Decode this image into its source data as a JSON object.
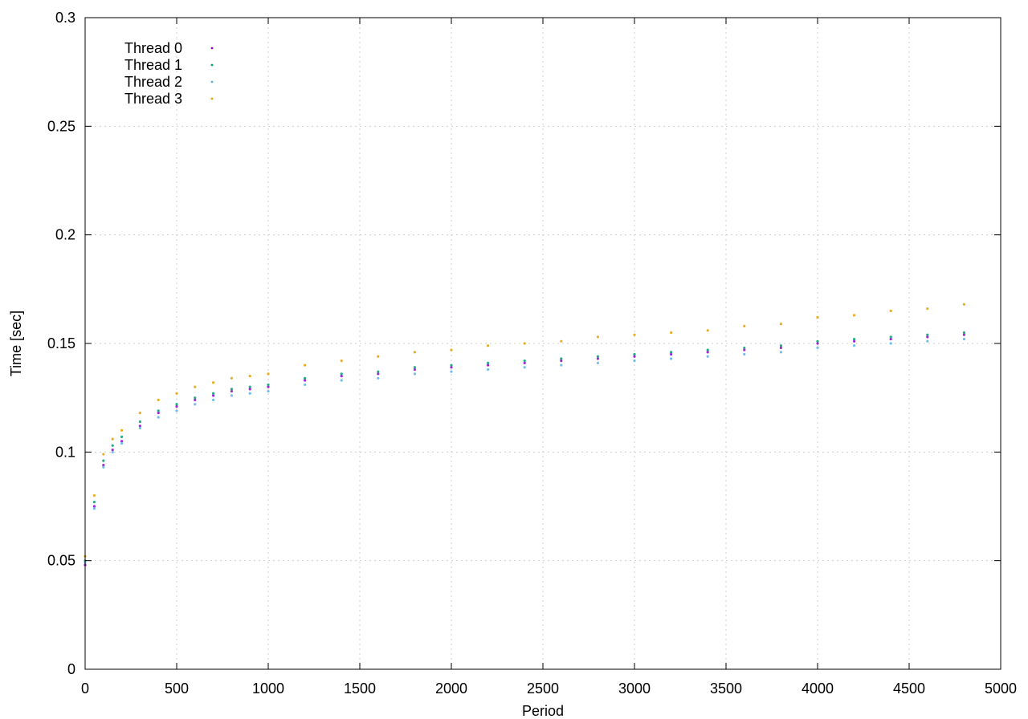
{
  "chart_data": {
    "type": "scatter",
    "title": "",
    "xlabel": "Period",
    "ylabel": "Time [sec]",
    "xlim": [
      0,
      5000
    ],
    "ylim": [
      0,
      0.3
    ],
    "x_ticks": [
      0,
      500,
      1000,
      1500,
      2000,
      2500,
      3000,
      3500,
      4000,
      4500,
      5000
    ],
    "y_ticks": [
      0,
      0.05,
      0.1,
      0.15,
      0.2,
      0.25,
      0.3
    ],
    "x_tick_labels": [
      "0",
      "500",
      "1000",
      "1500",
      "2000",
      "2500",
      "3000",
      "3500",
      "4000",
      "4500",
      "5000"
    ],
    "y_tick_labels": [
      "0",
      "0.05",
      "0.1",
      "0.15",
      "0.2",
      "0.25",
      "0.3"
    ],
    "grid": true,
    "legend_position": "top-left",
    "series": [
      {
        "name": "Thread 0",
        "color": "#9400d3",
        "points": [
          [
            0,
            0.048
          ],
          [
            50,
            0.075
          ],
          [
            100,
            0.094
          ],
          [
            150,
            0.101
          ],
          [
            200,
            0.105
          ],
          [
            300,
            0.112
          ],
          [
            400,
            0.118
          ],
          [
            500,
            0.121
          ],
          [
            600,
            0.124
          ],
          [
            700,
            0.126
          ],
          [
            800,
            0.128
          ],
          [
            900,
            0.129
          ],
          [
            1000,
            0.13
          ],
          [
            1200,
            0.133
          ],
          [
            1400,
            0.135
          ],
          [
            1600,
            0.136
          ],
          [
            1800,
            0.138
          ],
          [
            2000,
            0.139
          ],
          [
            2200,
            0.14
          ],
          [
            2400,
            0.141
          ],
          [
            2600,
            0.142
          ],
          [
            2800,
            0.143
          ],
          [
            3000,
            0.144
          ],
          [
            3200,
            0.145
          ],
          [
            3400,
            0.146
          ],
          [
            3600,
            0.147
          ],
          [
            3800,
            0.148
          ],
          [
            4000,
            0.15
          ],
          [
            4200,
            0.151
          ],
          [
            4400,
            0.152
          ],
          [
            4600,
            0.153
          ],
          [
            4800,
            0.154
          ]
        ]
      },
      {
        "name": "Thread 1",
        "color": "#009e73",
        "points": [
          [
            0,
            0.05
          ],
          [
            50,
            0.077
          ],
          [
            100,
            0.096
          ],
          [
            150,
            0.103
          ],
          [
            200,
            0.107
          ],
          [
            300,
            0.114
          ],
          [
            400,
            0.119
          ],
          [
            500,
            0.122
          ],
          [
            600,
            0.125
          ],
          [
            700,
            0.127
          ],
          [
            800,
            0.129
          ],
          [
            900,
            0.13
          ],
          [
            1000,
            0.131
          ],
          [
            1200,
            0.134
          ],
          [
            1400,
            0.136
          ],
          [
            1600,
            0.137
          ],
          [
            1800,
            0.139
          ],
          [
            2000,
            0.14
          ],
          [
            2200,
            0.141
          ],
          [
            2400,
            0.142
          ],
          [
            2600,
            0.143
          ],
          [
            2800,
            0.144
          ],
          [
            3000,
            0.145
          ],
          [
            3200,
            0.146
          ],
          [
            3400,
            0.147
          ],
          [
            3600,
            0.148
          ],
          [
            3800,
            0.149
          ],
          [
            4000,
            0.151
          ],
          [
            4200,
            0.152
          ],
          [
            4400,
            0.153
          ],
          [
            4600,
            0.154
          ],
          [
            4800,
            0.155
          ]
        ]
      },
      {
        "name": "Thread 2",
        "color": "#56b4e9",
        "points": [
          [
            0,
            0.049
          ],
          [
            50,
            0.074
          ],
          [
            100,
            0.093
          ],
          [
            150,
            0.1
          ],
          [
            200,
            0.104
          ],
          [
            300,
            0.111
          ],
          [
            400,
            0.116
          ],
          [
            500,
            0.119
          ],
          [
            600,
            0.122
          ],
          [
            700,
            0.124
          ],
          [
            800,
            0.126
          ],
          [
            900,
            0.127
          ],
          [
            1000,
            0.128
          ],
          [
            1200,
            0.131
          ],
          [
            1400,
            0.133
          ],
          [
            1600,
            0.134
          ],
          [
            1800,
            0.136
          ],
          [
            2000,
            0.137
          ],
          [
            2200,
            0.138
          ],
          [
            2400,
            0.139
          ],
          [
            2600,
            0.14
          ],
          [
            2800,
            0.141
          ],
          [
            3000,
            0.142
          ],
          [
            3200,
            0.143
          ],
          [
            3400,
            0.144
          ],
          [
            3600,
            0.145
          ],
          [
            3800,
            0.146
          ],
          [
            4000,
            0.148
          ],
          [
            4200,
            0.149
          ],
          [
            4400,
            0.15
          ],
          [
            4600,
            0.151
          ],
          [
            4800,
            0.152
          ]
        ]
      },
      {
        "name": "Thread 3",
        "color": "#e69f00",
        "points": [
          [
            0,
            0.052
          ],
          [
            50,
            0.08
          ],
          [
            100,
            0.099
          ],
          [
            150,
            0.106
          ],
          [
            200,
            0.11
          ],
          [
            300,
            0.118
          ],
          [
            400,
            0.124
          ],
          [
            500,
            0.127
          ],
          [
            600,
            0.13
          ],
          [
            700,
            0.132
          ],
          [
            800,
            0.134
          ],
          [
            900,
            0.135
          ],
          [
            1000,
            0.136
          ],
          [
            1200,
            0.14
          ],
          [
            1400,
            0.142
          ],
          [
            1600,
            0.144
          ],
          [
            1800,
            0.146
          ],
          [
            2000,
            0.147
          ],
          [
            2200,
            0.149
          ],
          [
            2400,
            0.15
          ],
          [
            2600,
            0.151
          ],
          [
            2800,
            0.153
          ],
          [
            3000,
            0.154
          ],
          [
            3200,
            0.155
          ],
          [
            3400,
            0.156
          ],
          [
            3600,
            0.158
          ],
          [
            3800,
            0.159
          ],
          [
            4000,
            0.162
          ],
          [
            4200,
            0.163
          ],
          [
            4400,
            0.165
          ],
          [
            4600,
            0.166
          ],
          [
            4800,
            0.168
          ]
        ]
      }
    ]
  }
}
